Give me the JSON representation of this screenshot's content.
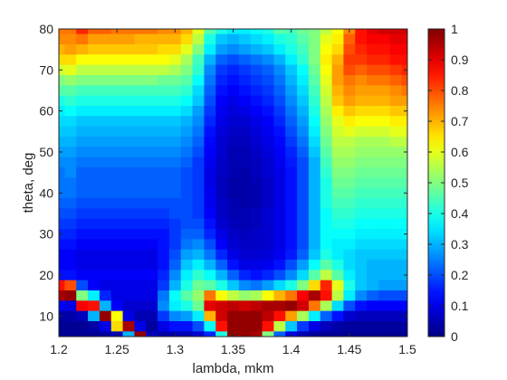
{
  "chart_data": {
    "type": "heatmap",
    "xlabel": "lambda, mkm",
    "ylabel": "theta, deg",
    "xlim": [
      1.2,
      1.5
    ],
    "ylim": [
      5,
      80
    ],
    "x_ticks": [
      "1.2",
      "1.25",
      "1.3",
      "1.35",
      "1.4",
      "1.45",
      "1.5"
    ],
    "y_ticks": [
      "10",
      "20",
      "30",
      "40",
      "50",
      "60",
      "70",
      "80"
    ],
    "colorbar": {
      "range": [
        0,
        1
      ],
      "ticks": [
        "0",
        "0.1",
        "0.2",
        "0.3",
        "0.4",
        "0.5",
        "0.6",
        "0.7",
        "0.8",
        "0.9",
        "1"
      ],
      "colormap": "jet"
    },
    "grid": false,
    "x_centers": [
      1.2,
      1.21,
      1.22,
      1.23,
      1.24,
      1.25,
      1.26,
      1.27,
      1.28,
      1.29,
      1.3,
      1.31,
      1.32,
      1.33,
      1.34,
      1.35,
      1.36,
      1.37,
      1.38,
      1.39,
      1.4,
      1.41,
      1.42,
      1.43,
      1.44,
      1.45,
      1.46,
      1.47,
      1.48,
      1.49,
      1.5
    ],
    "y_centers": [
      80,
      77.5,
      75,
      72.5,
      70,
      67.5,
      65,
      62.5,
      60,
      57.5,
      55,
      52.5,
      50,
      47.5,
      45,
      42.5,
      40,
      37.5,
      35,
      32.5,
      30,
      27.5,
      25,
      22.5,
      20,
      17.5,
      15,
      12.5,
      10,
      7.5,
      5
    ],
    "values": [
      [
        0.76,
        0.76,
        0.84,
        0.78,
        0.78,
        0.76,
        0.76,
        0.76,
        0.76,
        0.74,
        0.74,
        0.7,
        0.6,
        0.46,
        0.4,
        0.36,
        0.36,
        0.38,
        0.4,
        0.46,
        0.44,
        0.48,
        0.5,
        0.56,
        0.62,
        0.74,
        0.86,
        0.9,
        0.92,
        0.92,
        0.92
      ],
      [
        0.74,
        0.74,
        0.76,
        0.72,
        0.72,
        0.72,
        0.72,
        0.7,
        0.7,
        0.7,
        0.7,
        0.66,
        0.56,
        0.4,
        0.32,
        0.3,
        0.32,
        0.34,
        0.36,
        0.4,
        0.42,
        0.46,
        0.5,
        0.6,
        0.64,
        0.78,
        0.86,
        0.88,
        0.88,
        0.9,
        0.9
      ],
      [
        0.7,
        0.72,
        0.7,
        0.68,
        0.68,
        0.68,
        0.68,
        0.68,
        0.68,
        0.66,
        0.66,
        0.6,
        0.5,
        0.36,
        0.28,
        0.26,
        0.28,
        0.3,
        0.32,
        0.36,
        0.4,
        0.44,
        0.5,
        0.62,
        0.66,
        0.8,
        0.84,
        0.86,
        0.86,
        0.88,
        0.88
      ],
      [
        0.66,
        0.66,
        0.62,
        0.62,
        0.62,
        0.62,
        0.62,
        0.62,
        0.62,
        0.62,
        0.6,
        0.54,
        0.44,
        0.3,
        0.22,
        0.2,
        0.22,
        0.24,
        0.26,
        0.3,
        0.36,
        0.42,
        0.5,
        0.64,
        0.7,
        0.82,
        0.82,
        0.84,
        0.84,
        0.86,
        0.86
      ],
      [
        0.58,
        0.6,
        0.56,
        0.56,
        0.56,
        0.56,
        0.56,
        0.56,
        0.56,
        0.56,
        0.54,
        0.5,
        0.42,
        0.26,
        0.18,
        0.16,
        0.18,
        0.2,
        0.22,
        0.26,
        0.32,
        0.38,
        0.48,
        0.62,
        0.72,
        0.8,
        0.78,
        0.8,
        0.8,
        0.82,
        0.84
      ],
      [
        0.5,
        0.52,
        0.5,
        0.5,
        0.5,
        0.5,
        0.5,
        0.5,
        0.5,
        0.48,
        0.48,
        0.46,
        0.38,
        0.24,
        0.16,
        0.14,
        0.16,
        0.18,
        0.2,
        0.24,
        0.3,
        0.36,
        0.46,
        0.6,
        0.72,
        0.76,
        0.74,
        0.76,
        0.76,
        0.78,
        0.8
      ],
      [
        0.46,
        0.46,
        0.44,
        0.44,
        0.44,
        0.44,
        0.44,
        0.44,
        0.44,
        0.44,
        0.44,
        0.42,
        0.34,
        0.22,
        0.14,
        0.12,
        0.14,
        0.16,
        0.18,
        0.22,
        0.28,
        0.34,
        0.44,
        0.58,
        0.7,
        0.74,
        0.72,
        0.72,
        0.72,
        0.74,
        0.76
      ],
      [
        0.4,
        0.42,
        0.4,
        0.4,
        0.4,
        0.4,
        0.4,
        0.4,
        0.4,
        0.4,
        0.4,
        0.38,
        0.32,
        0.2,
        0.12,
        0.1,
        0.12,
        0.14,
        0.16,
        0.2,
        0.26,
        0.32,
        0.42,
        0.56,
        0.68,
        0.72,
        0.7,
        0.7,
        0.7,
        0.72,
        0.72
      ],
      [
        0.36,
        0.38,
        0.36,
        0.36,
        0.36,
        0.36,
        0.36,
        0.36,
        0.36,
        0.36,
        0.36,
        0.34,
        0.28,
        0.18,
        0.11,
        0.09,
        0.1,
        0.12,
        0.14,
        0.18,
        0.24,
        0.3,
        0.4,
        0.54,
        0.64,
        0.68,
        0.66,
        0.66,
        0.66,
        0.68,
        0.68
      ],
      [
        0.34,
        0.34,
        0.32,
        0.32,
        0.32,
        0.32,
        0.32,
        0.32,
        0.32,
        0.32,
        0.32,
        0.3,
        0.26,
        0.16,
        0.1,
        0.08,
        0.08,
        0.1,
        0.12,
        0.16,
        0.22,
        0.28,
        0.38,
        0.52,
        0.6,
        0.64,
        0.62,
        0.62,
        0.62,
        0.64,
        0.64
      ],
      [
        0.32,
        0.32,
        0.3,
        0.3,
        0.3,
        0.3,
        0.3,
        0.3,
        0.3,
        0.3,
        0.3,
        0.28,
        0.24,
        0.14,
        0.09,
        0.07,
        0.07,
        0.09,
        0.11,
        0.14,
        0.2,
        0.26,
        0.36,
        0.5,
        0.58,
        0.6,
        0.58,
        0.58,
        0.58,
        0.6,
        0.6
      ],
      [
        0.3,
        0.3,
        0.28,
        0.28,
        0.28,
        0.28,
        0.28,
        0.28,
        0.28,
        0.28,
        0.28,
        0.26,
        0.22,
        0.13,
        0.08,
        0.06,
        0.06,
        0.08,
        0.1,
        0.13,
        0.18,
        0.24,
        0.34,
        0.48,
        0.56,
        0.56,
        0.54,
        0.54,
        0.54,
        0.56,
        0.56
      ],
      [
        0.28,
        0.28,
        0.26,
        0.26,
        0.26,
        0.26,
        0.26,
        0.26,
        0.26,
        0.26,
        0.26,
        0.24,
        0.2,
        0.12,
        0.08,
        0.05,
        0.05,
        0.07,
        0.09,
        0.12,
        0.16,
        0.22,
        0.32,
        0.46,
        0.54,
        0.54,
        0.52,
        0.52,
        0.52,
        0.52,
        0.52
      ],
      [
        0.26,
        0.26,
        0.24,
        0.24,
        0.24,
        0.24,
        0.24,
        0.24,
        0.24,
        0.24,
        0.24,
        0.22,
        0.18,
        0.11,
        0.07,
        0.05,
        0.05,
        0.06,
        0.08,
        0.11,
        0.15,
        0.2,
        0.3,
        0.44,
        0.52,
        0.52,
        0.5,
        0.5,
        0.5,
        0.5,
        0.5
      ],
      [
        0.24,
        0.26,
        0.22,
        0.22,
        0.22,
        0.22,
        0.22,
        0.22,
        0.22,
        0.22,
        0.22,
        0.2,
        0.18,
        0.1,
        0.07,
        0.05,
        0.04,
        0.06,
        0.08,
        0.1,
        0.14,
        0.2,
        0.3,
        0.42,
        0.5,
        0.5,
        0.48,
        0.48,
        0.48,
        0.48,
        0.48
      ],
      [
        0.24,
        0.24,
        0.22,
        0.22,
        0.22,
        0.22,
        0.22,
        0.22,
        0.22,
        0.22,
        0.22,
        0.2,
        0.18,
        0.1,
        0.06,
        0.04,
        0.04,
        0.05,
        0.07,
        0.1,
        0.14,
        0.2,
        0.3,
        0.4,
        0.48,
        0.48,
        0.46,
        0.46,
        0.46,
        0.46,
        0.46
      ],
      [
        0.24,
        0.24,
        0.22,
        0.22,
        0.22,
        0.22,
        0.22,
        0.22,
        0.22,
        0.22,
        0.22,
        0.2,
        0.18,
        0.11,
        0.06,
        0.04,
        0.04,
        0.05,
        0.07,
        0.1,
        0.14,
        0.2,
        0.3,
        0.4,
        0.46,
        0.46,
        0.44,
        0.44,
        0.44,
        0.44,
        0.44
      ],
      [
        0.22,
        0.22,
        0.2,
        0.2,
        0.2,
        0.2,
        0.2,
        0.2,
        0.2,
        0.2,
        0.2,
        0.2,
        0.18,
        0.11,
        0.07,
        0.05,
        0.04,
        0.05,
        0.07,
        0.1,
        0.14,
        0.2,
        0.3,
        0.4,
        0.44,
        0.44,
        0.42,
        0.42,
        0.42,
        0.42,
        0.42
      ],
      [
        0.2,
        0.2,
        0.18,
        0.18,
        0.18,
        0.18,
        0.18,
        0.18,
        0.18,
        0.18,
        0.2,
        0.2,
        0.18,
        0.12,
        0.07,
        0.05,
        0.05,
        0.06,
        0.08,
        0.1,
        0.14,
        0.2,
        0.3,
        0.38,
        0.42,
        0.42,
        0.4,
        0.4,
        0.4,
        0.4,
        0.4
      ],
      [
        0.18,
        0.18,
        0.16,
        0.16,
        0.16,
        0.16,
        0.16,
        0.16,
        0.16,
        0.16,
        0.18,
        0.2,
        0.2,
        0.14,
        0.08,
        0.06,
        0.05,
        0.06,
        0.08,
        0.1,
        0.14,
        0.2,
        0.3,
        0.38,
        0.4,
        0.4,
        0.38,
        0.38,
        0.38,
        0.38,
        0.38
      ],
      [
        0.16,
        0.16,
        0.14,
        0.14,
        0.14,
        0.14,
        0.14,
        0.14,
        0.14,
        0.14,
        0.18,
        0.22,
        0.22,
        0.16,
        0.1,
        0.07,
        0.06,
        0.07,
        0.08,
        0.1,
        0.14,
        0.2,
        0.3,
        0.38,
        0.38,
        0.38,
        0.36,
        0.36,
        0.36,
        0.36,
        0.36
      ],
      [
        0.14,
        0.14,
        0.12,
        0.12,
        0.12,
        0.12,
        0.12,
        0.12,
        0.12,
        0.14,
        0.18,
        0.24,
        0.26,
        0.2,
        0.12,
        0.08,
        0.07,
        0.07,
        0.08,
        0.1,
        0.14,
        0.2,
        0.3,
        0.38,
        0.36,
        0.36,
        0.34,
        0.34,
        0.34,
        0.34,
        0.34
      ],
      [
        0.12,
        0.12,
        0.1,
        0.1,
        0.1,
        0.1,
        0.1,
        0.1,
        0.1,
        0.14,
        0.2,
        0.28,
        0.3,
        0.24,
        0.16,
        0.1,
        0.08,
        0.08,
        0.09,
        0.11,
        0.15,
        0.22,
        0.32,
        0.4,
        0.36,
        0.34,
        0.32,
        0.32,
        0.32,
        0.32,
        0.32
      ],
      [
        0.12,
        0.12,
        0.1,
        0.1,
        0.1,
        0.1,
        0.1,
        0.1,
        0.1,
        0.14,
        0.22,
        0.32,
        0.36,
        0.3,
        0.22,
        0.14,
        0.1,
        0.1,
        0.11,
        0.14,
        0.2,
        0.28,
        0.38,
        0.46,
        0.4,
        0.34,
        0.32,
        0.3,
        0.3,
        0.3,
        0.3
      ],
      [
        0.14,
        0.14,
        0.12,
        0.12,
        0.12,
        0.12,
        0.12,
        0.12,
        0.12,
        0.16,
        0.26,
        0.36,
        0.42,
        0.38,
        0.3,
        0.22,
        0.16,
        0.14,
        0.16,
        0.2,
        0.26,
        0.34,
        0.46,
        0.56,
        0.46,
        0.36,
        0.32,
        0.3,
        0.3,
        0.3,
        0.3
      ],
      [
        0.86,
        0.8,
        0.2,
        0.12,
        0.1,
        0.1,
        0.1,
        0.1,
        0.1,
        0.18,
        0.3,
        0.4,
        0.48,
        0.46,
        0.4,
        0.32,
        0.26,
        0.24,
        0.28,
        0.34,
        0.4,
        0.5,
        0.66,
        0.84,
        0.6,
        0.4,
        0.32,
        0.3,
        0.28,
        0.28,
        0.28
      ],
      [
        0.96,
        0.98,
        0.5,
        0.36,
        0.16,
        0.1,
        0.1,
        0.1,
        0.1,
        0.24,
        0.38,
        0.46,
        0.52,
        0.76,
        0.62,
        0.56,
        0.52,
        0.54,
        0.62,
        0.7,
        0.76,
        0.88,
        0.96,
        0.86,
        0.56,
        0.36,
        0.26,
        0.22,
        0.2,
        0.2,
        0.2
      ],
      [
        0.12,
        0.1,
        0.88,
        0.86,
        0.3,
        0.12,
        0.08,
        0.08,
        0.08,
        0.26,
        0.36,
        0.4,
        0.48,
        0.9,
        0.92,
        0.94,
        0.92,
        0.94,
        0.96,
        0.96,
        0.98,
        0.92,
        0.76,
        0.54,
        0.34,
        0.2,
        0.14,
        0.12,
        0.12,
        0.12,
        0.12
      ],
      [
        0.04,
        0.04,
        0.06,
        0.3,
        0.98,
        0.62,
        0.1,
        0.05,
        0.05,
        0.18,
        0.26,
        0.28,
        0.36,
        0.7,
        0.92,
        0.98,
        0.98,
        0.98,
        0.94,
        0.86,
        0.72,
        0.54,
        0.36,
        0.22,
        0.14,
        0.08,
        0.06,
        0.06,
        0.06,
        0.06,
        0.06
      ],
      [
        0.02,
        0.02,
        0.02,
        0.04,
        0.1,
        0.66,
        0.96,
        0.1,
        0.03,
        0.1,
        0.14,
        0.14,
        0.2,
        0.38,
        0.86,
        0.98,
        0.98,
        0.98,
        0.86,
        0.56,
        0.32,
        0.18,
        0.1,
        0.06,
        0.04,
        0.03,
        0.03,
        0.03,
        0.03,
        0.03,
        0.03
      ],
      [
        0.02,
        0.02,
        0.02,
        0.02,
        0.03,
        0.06,
        0.3,
        0.98,
        0.06,
        0.04,
        0.05,
        0.05,
        0.08,
        0.16,
        0.4,
        0.98,
        0.98,
        0.96,
        0.5,
        0.22,
        0.1,
        0.05,
        0.03,
        0.02,
        0.02,
        0.02,
        0.02,
        0.02,
        0.02,
        0.02,
        0.02
      ]
    ]
  }
}
